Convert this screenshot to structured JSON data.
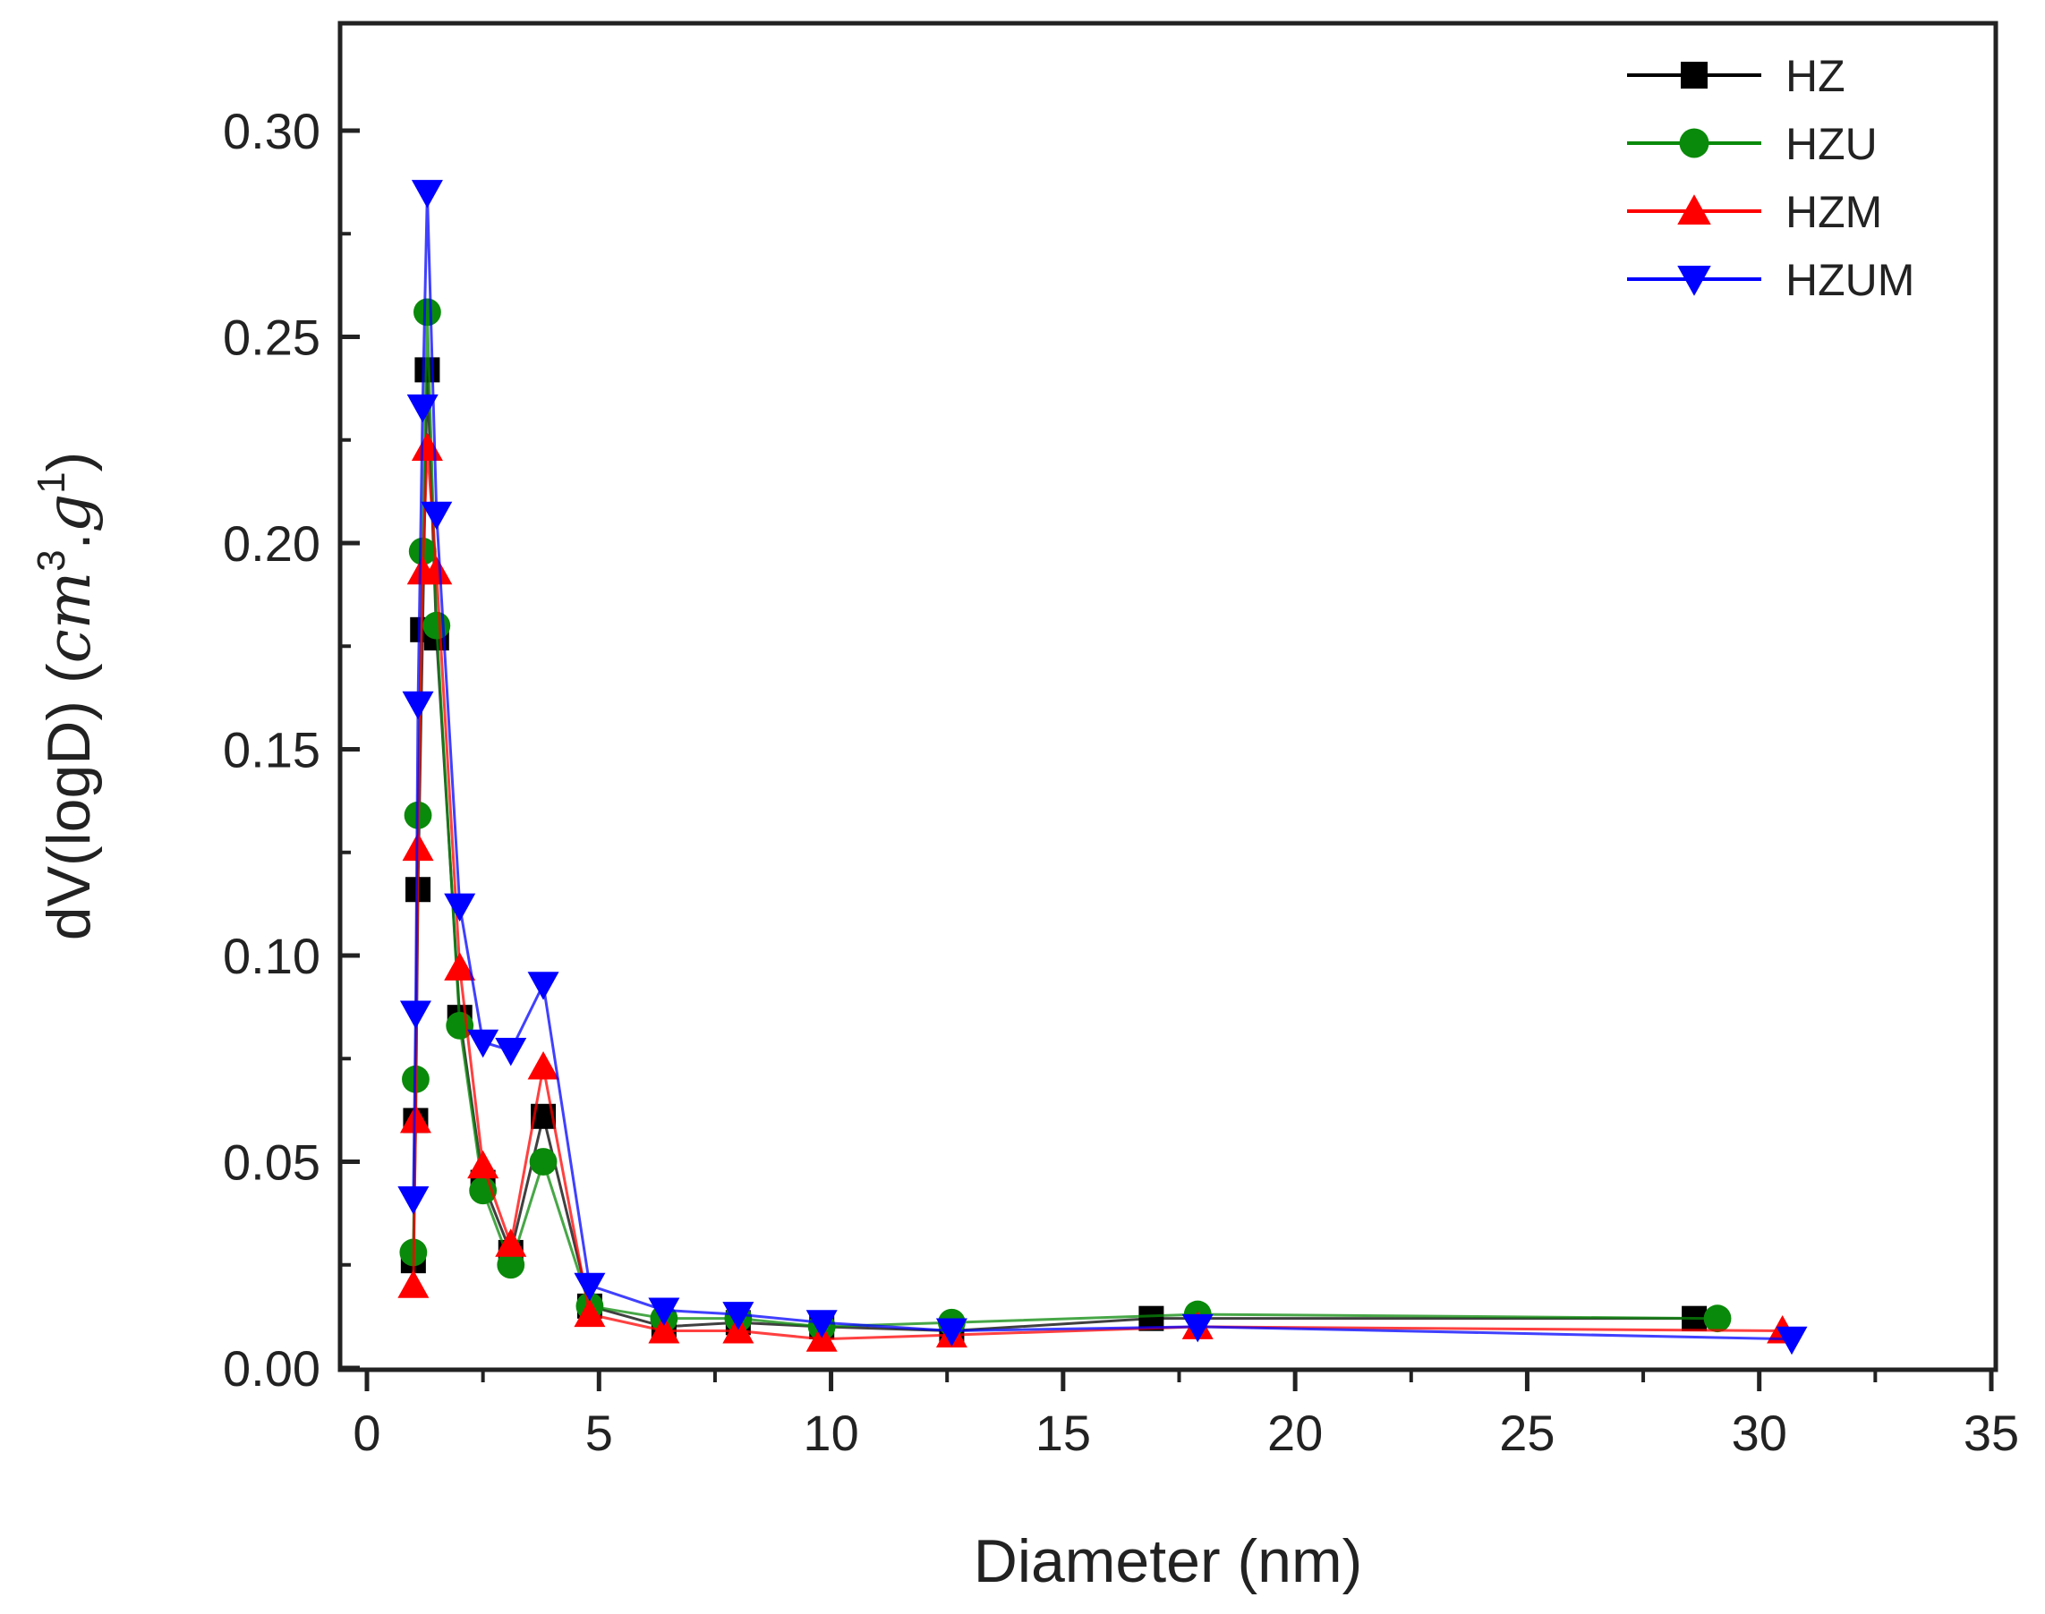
{
  "chart_data": {
    "type": "line",
    "title": "",
    "xlabel": "Diameter (nm)",
    "ylabel": "dV(logD) (cm³.g¹)",
    "ylabel_parts": {
      "prefix": "dV(logD) (",
      "var1": "cm",
      "sup1": "3",
      "dot": ".",
      "var2": "g",
      "sup2": "1",
      "suffix": ")"
    },
    "xlim": [
      0,
      35
    ],
    "ylim": [
      0,
      0.3
    ],
    "x_ticks": [
      0,
      5,
      10,
      15,
      20,
      25,
      30,
      35
    ],
    "x_tick_labels": [
      "0",
      "5",
      "10",
      "15",
      "20",
      "25",
      "30",
      "35"
    ],
    "y_ticks": [
      0.0,
      0.05,
      0.1,
      0.15,
      0.2,
      0.25,
      0.3
    ],
    "y_tick_labels": [
      "0.00",
      "0.05",
      "0.10",
      "0.15",
      "0.20",
      "0.25",
      "0.30"
    ],
    "grid": false,
    "legend_position": "top-right",
    "series": [
      {
        "name": "HZ",
        "color": "#000000",
        "marker": "square",
        "x": [
          1.0,
          1.05,
          1.1,
          1.2,
          1.3,
          1.5,
          2.0,
          2.5,
          3.1,
          3.8,
          4.8,
          6.4,
          8.0,
          9.8,
          12.6,
          16.9,
          28.6
        ],
        "y": [
          0.026,
          0.06,
          0.116,
          0.179,
          0.242,
          0.177,
          0.085,
          0.045,
          0.028,
          0.061,
          0.015,
          0.01,
          0.011,
          0.01,
          0.009,
          0.012,
          0.012
        ]
      },
      {
        "name": "HZU",
        "color": "#0a8a0a",
        "marker": "circle",
        "x": [
          1.0,
          1.05,
          1.1,
          1.2,
          1.3,
          1.5,
          2.0,
          2.5,
          3.1,
          3.8,
          4.8,
          6.4,
          8.0,
          9.8,
          12.6,
          17.9,
          29.1
        ],
        "y": [
          0.028,
          0.07,
          0.134,
          0.198,
          0.256,
          0.18,
          0.083,
          0.043,
          0.025,
          0.05,
          0.015,
          0.012,
          0.012,
          0.01,
          0.011,
          0.013,
          0.012
        ]
      },
      {
        "name": "HZM",
        "color": "#ff0000",
        "marker": "triangle-up",
        "x": [
          1.0,
          1.05,
          1.1,
          1.2,
          1.3,
          1.5,
          2.0,
          2.5,
          3.1,
          3.8,
          4.8,
          6.4,
          8.0,
          9.8,
          12.6,
          17.9,
          30.5
        ],
        "y": [
          0.02,
          0.06,
          0.126,
          0.193,
          0.223,
          0.193,
          0.097,
          0.049,
          0.03,
          0.073,
          0.013,
          0.009,
          0.009,
          0.007,
          0.008,
          0.01,
          0.009
        ]
      },
      {
        "name": "HZUM",
        "color": "#0000ff",
        "marker": "triangle-down",
        "x": [
          1.0,
          1.05,
          1.1,
          1.2,
          1.3,
          1.5,
          2.0,
          2.5,
          3.1,
          3.8,
          4.8,
          6.4,
          8.0,
          9.8,
          12.6,
          17.9,
          30.7
        ],
        "y": [
          0.041,
          0.086,
          0.161,
          0.233,
          0.285,
          0.207,
          0.112,
          0.079,
          0.077,
          0.093,
          0.02,
          0.014,
          0.013,
          0.011,
          0.009,
          0.01,
          0.007
        ]
      }
    ]
  }
}
